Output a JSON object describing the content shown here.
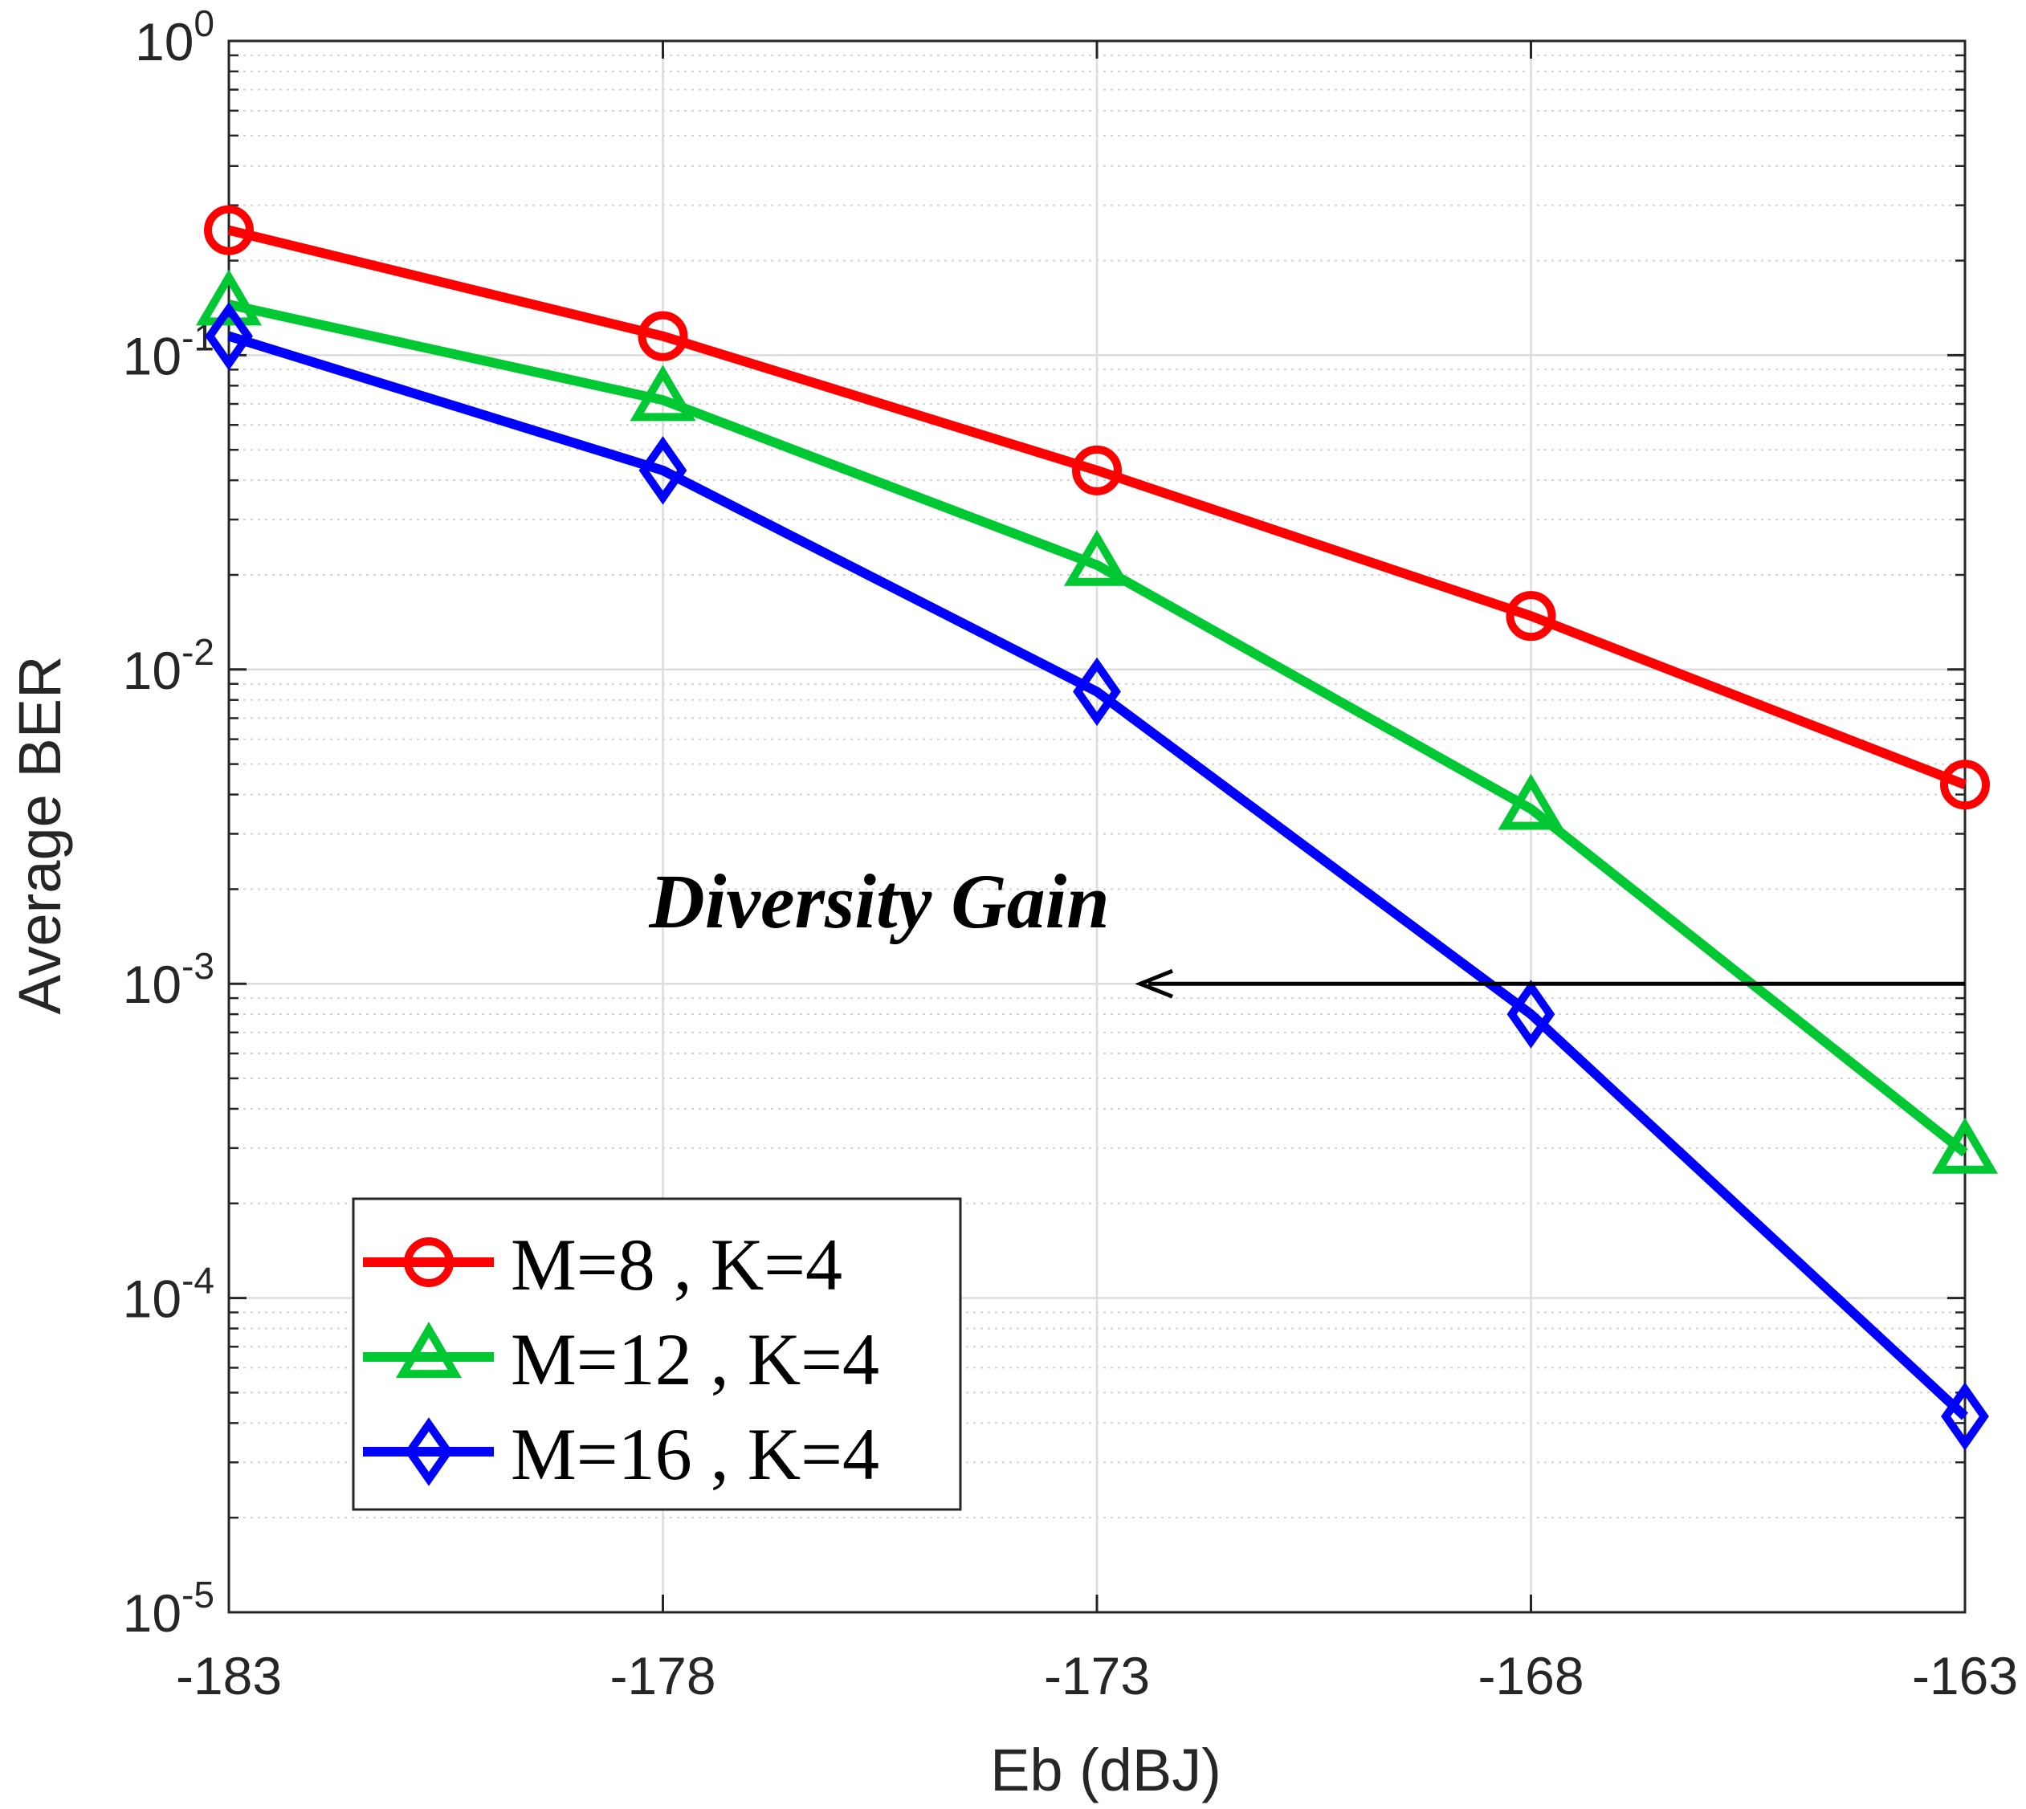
{
  "chart_data": {
    "type": "line",
    "title": "",
    "xlabel": "Eb (dBJ)",
    "ylabel": "Average BER",
    "y_scale": "log",
    "xlim": [
      -183,
      -163
    ],
    "ylim": [
      1e-05,
      1
    ],
    "x": [
      -183,
      -178,
      -173,
      -168,
      -163
    ],
    "x_tick_labels": [
      "-183",
      "-178",
      "-173",
      "-168",
      "-163"
    ],
    "y_ticks": [
      {
        "base": "10",
        "exp": "-5",
        "value": 1e-05
      },
      {
        "base": "10",
        "exp": "-4",
        "value": 0.0001
      },
      {
        "base": "10",
        "exp": "-3",
        "value": 0.001
      },
      {
        "base": "10",
        "exp": "-2",
        "value": 0.01
      },
      {
        "base": "10",
        "exp": "-1",
        "value": 0.1
      },
      {
        "base": "10",
        "exp": "0",
        "value": 1
      }
    ],
    "grid": true,
    "minor_grid": true,
    "legend_position": "bottom-left",
    "series": [
      {
        "name": "M=8 , K=4",
        "color": "#ff0000",
        "marker": "circle",
        "values": [
          0.25,
          0.115,
          0.043,
          0.0148,
          0.0043
        ]
      },
      {
        "name": "M=12 , K=4",
        "color": "#00c832",
        "marker": "triangle",
        "values": [
          0.145,
          0.072,
          0.0215,
          0.0036,
          0.00029
        ]
      },
      {
        "name": "M=16 , K=4",
        "color": "#0000ff",
        "marker": "diamond",
        "values": [
          0.115,
          0.043,
          0.0085,
          0.0008,
          4.2e-05
        ]
      }
    ],
    "annotation": {
      "text": "Diversity Gain",
      "arrow_y": 0.001,
      "arrow_from_x": -163,
      "arrow_to_x": -172.5
    }
  }
}
